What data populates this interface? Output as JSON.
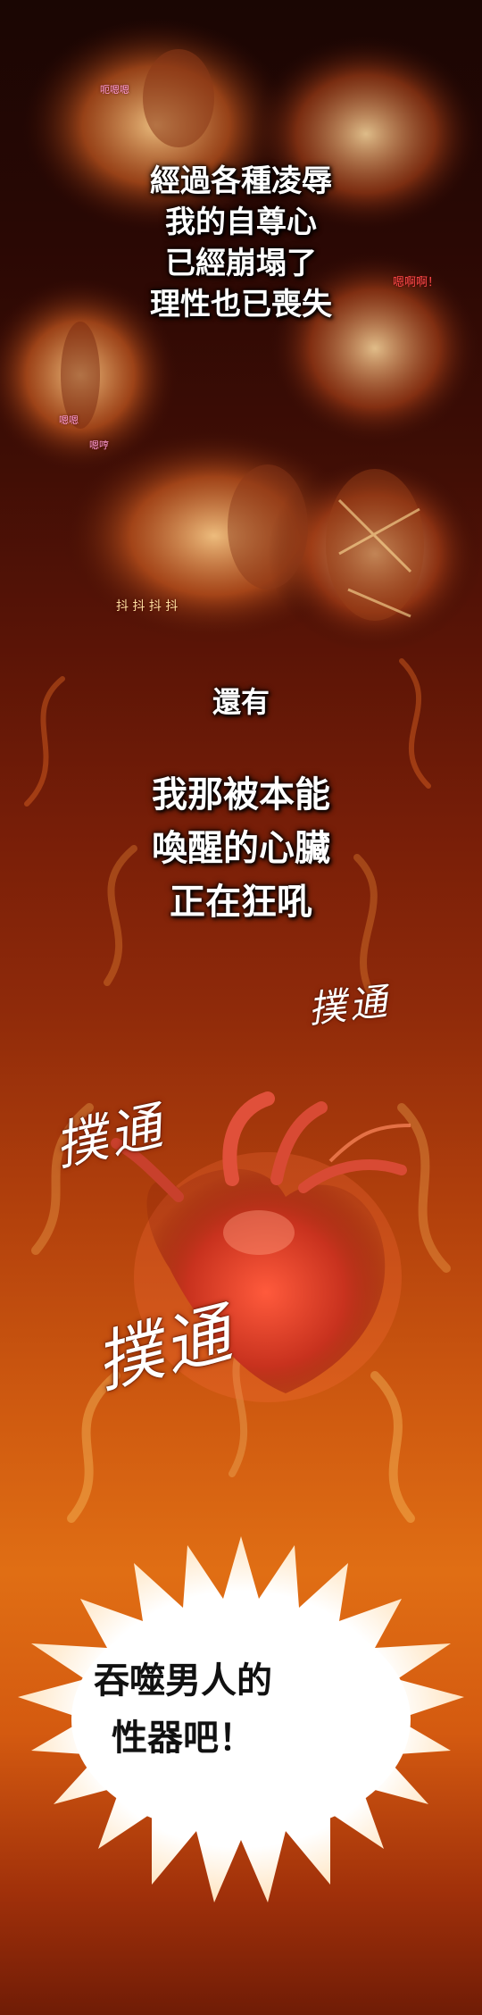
{
  "narration_1": {
    "lines": [
      "經過各種凌辱",
      "我的自尊心",
      "已經崩塌了",
      "理性也已喪失"
    ]
  },
  "narration_2": {
    "line": "還有"
  },
  "narration_3": {
    "lines": [
      "我那被本能",
      "喚醒的心臟",
      "正在狂吼"
    ]
  },
  "sound_effects": {
    "thump_1": "撲通",
    "thump_2": "撲通",
    "thump_3": "撲通"
  },
  "panel_small_text": {
    "moan_1": "呃嗯嗯",
    "moan_2": "嗯啊啊！",
    "moan_3": "嗯嗯",
    "moan_4": "嗯哼",
    "shiver": "抖 抖 抖 抖"
  },
  "burst": {
    "lines": [
      "吞噬男人的",
      "性器吧！"
    ]
  },
  "colors": {
    "fire_dark": "#2a0804",
    "fire_mid": "#b2400c",
    "fire_bright": "#e06e14",
    "heart": "#c8321e",
    "burst_white": "#ffffff"
  }
}
